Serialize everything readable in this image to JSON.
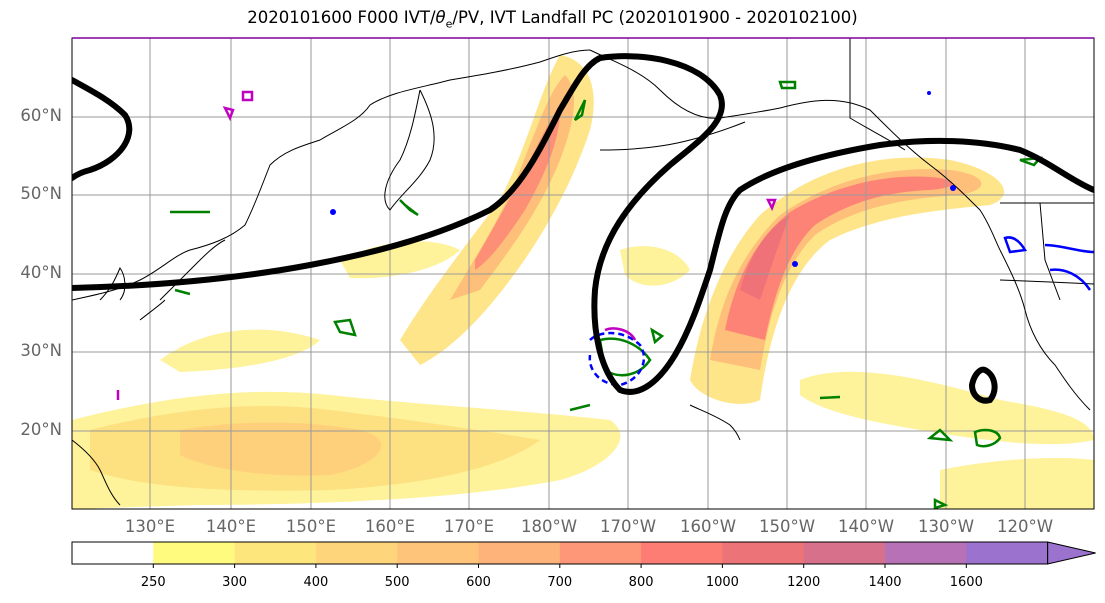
{
  "title": {
    "prefix": "2020101600 F000 IVT/",
    "theta": "θ",
    "theta_sub": "e",
    "suffix": "/PV, IVT Landfall PC (2020101900 - 2020102100)"
  },
  "map": {
    "lat_labels": [
      "60°N",
      "50°N",
      "40°N",
      "30°N",
      "20°N"
    ],
    "lon_labels": [
      "130°E",
      "140°E",
      "150°E",
      "160°E",
      "170°E",
      "180°W",
      "170°W",
      "160°W",
      "150°W",
      "140°W",
      "130°W",
      "120°W"
    ]
  },
  "colorbar": {
    "ticks": [
      "250",
      "300",
      "400",
      "500",
      "600",
      "700",
      "800",
      "1000",
      "1200",
      "1400",
      "1600"
    ],
    "colors": [
      "#ffffff",
      "#fefb7e",
      "#fde67c",
      "#fed57a",
      "#fec47a",
      "#feb37a",
      "#fe9778",
      "#fd7d75",
      "#ec7377",
      "#d7708b",
      "#b771b6",
      "#9b72ce"
    ]
  },
  "contour_colors": {
    "landfall_pc": "#000000",
    "theta_e": "#008000",
    "pv_neg": "#0000ff",
    "pv_pos": "#c000c0"
  }
}
